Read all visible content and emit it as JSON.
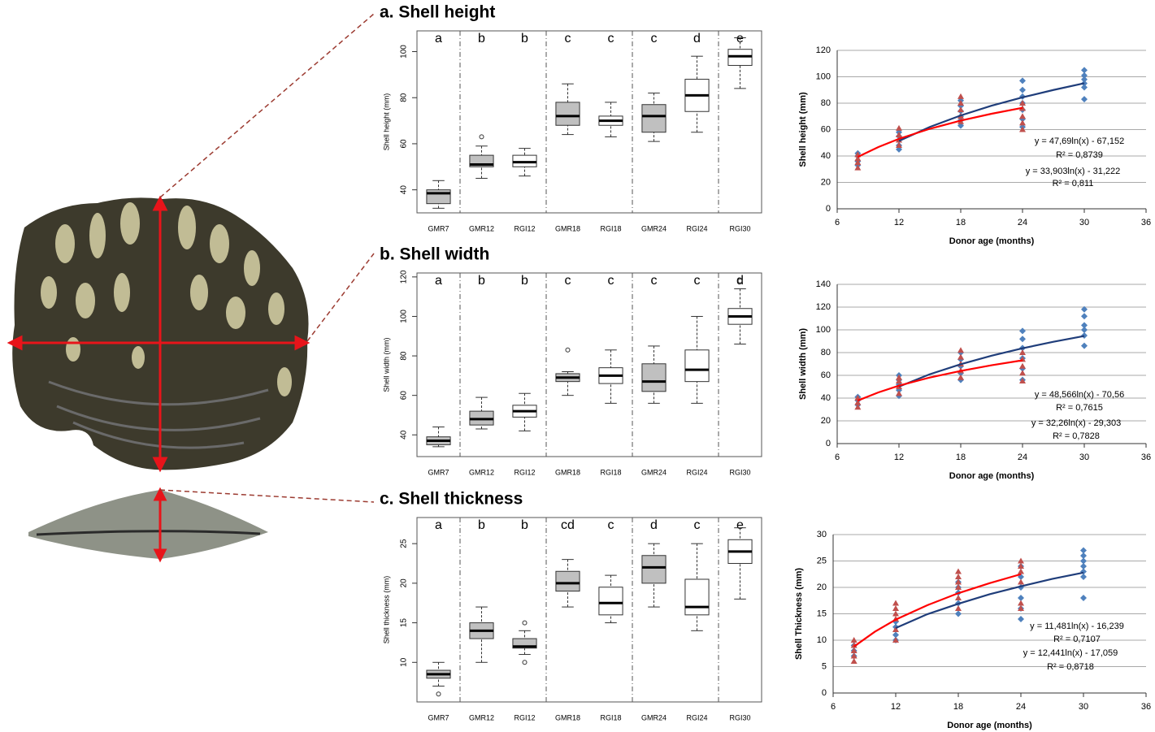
{
  "chart_data": [
    {
      "type": "box",
      "title": "a. Shell height",
      "ylabel": "Shell height (mm)",
      "categories": [
        "GMR7",
        "GMR12",
        "RGI12",
        "GMR18",
        "RGI18",
        "GMR24",
        "RGI24",
        "RGI30"
      ],
      "letters": [
        "a",
        "b",
        "b",
        "c",
        "c",
        "c",
        "d",
        "e"
      ],
      "fills": [
        "#c0c0c0",
        "#c0c0c0",
        "#ffffff",
        "#c0c0c0",
        "#ffffff",
        "#c0c0c0",
        "#ffffff",
        "#ffffff"
      ],
      "boxes": [
        {
          "min": 32,
          "q1": 34,
          "median": 38.5,
          "q3": 40,
          "max": 44,
          "outliers": []
        },
        {
          "min": 45,
          "q1": 50,
          "median": 51,
          "q3": 55,
          "max": 59,
          "outliers": [
            63
          ]
        },
        {
          "min": 46,
          "q1": 50,
          "median": 52,
          "q3": 55,
          "max": 58,
          "outliers": []
        },
        {
          "min": 64,
          "q1": 68,
          "median": 72,
          "q3": 78,
          "max": 86,
          "outliers": []
        },
        {
          "min": 63,
          "q1": 68,
          "median": 70,
          "q3": 72,
          "max": 78,
          "outliers": []
        },
        {
          "min": 61,
          "q1": 65,
          "median": 72,
          "q3": 77,
          "max": 82,
          "outliers": []
        },
        {
          "min": 65,
          "q1": 74,
          "median": 81,
          "q3": 88,
          "max": 98,
          "outliers": []
        },
        {
          "min": 84,
          "q1": 94,
          "median": 98,
          "q3": 101,
          "max": 106,
          "outliers": []
        }
      ],
      "ylim": [
        30,
        109
      ],
      "yticks": [
        40,
        60,
        80,
        100
      ]
    },
    {
      "type": "scatter",
      "xlabel": "Donor age (months)",
      "ylabel": "Shell height (mm)",
      "xlim": [
        6,
        36
      ],
      "xticks": [
        6,
        12,
        18,
        24,
        30,
        36
      ],
      "ylim": [
        0,
        120
      ],
      "yticks": [
        0,
        20,
        40,
        60,
        80,
        100,
        120
      ],
      "grid": true,
      "series": [
        {
          "color": "#4f81bd",
          "marker": "diamond",
          "x": [
            8,
            8,
            8,
            8,
            12,
            12,
            12,
            12,
            12,
            18,
            18,
            18,
            18,
            18,
            18,
            24,
            24,
            24,
            24,
            24,
            24,
            24,
            30,
            30,
            30,
            30,
            30,
            30
          ],
          "values": [
            33,
            36,
            40,
            42,
            45,
            48,
            52,
            55,
            58,
            63,
            67,
            70,
            74,
            78,
            82,
            62,
            68,
            75,
            80,
            85,
            90,
            97,
            83,
            92,
            95,
            98,
            101,
            105
          ]
        },
        {
          "color": "#c0504d",
          "marker": "triangle",
          "x": [
            8,
            8,
            8,
            8,
            12,
            12,
            12,
            12,
            18,
            18,
            18,
            18,
            18,
            24,
            24,
            24,
            24,
            24
          ],
          "values": [
            31,
            35,
            38,
            41,
            48,
            52,
            56,
            61,
            66,
            70,
            75,
            80,
            85,
            60,
            65,
            70,
            76,
            80
          ]
        }
      ],
      "fits": [
        {
          "name": "y = 47,69ln(x) - 67,152",
          "r2": "R² = 0,8739",
          "color": "#1f3d7a",
          "label_color": "#558ed5",
          "x": [
            12,
            15,
            18,
            21,
            24,
            27,
            30
          ],
          "values": [
            51.4,
            62.0,
            70.7,
            78.1,
            84.4,
            90.0,
            95.1
          ]
        },
        {
          "name": "y = 33,903ln(x) - 31,222",
          "r2": "R² = 0,811",
          "color": "#ff0000",
          "label_color": "#ff0000",
          "x": [
            8,
            10,
            12,
            15,
            18,
            21,
            24
          ],
          "values": [
            39.3,
            46.8,
            53.0,
            60.6,
            66.8,
            72.0,
            76.5
          ]
        }
      ]
    },
    {
      "type": "box",
      "title": "b. Shell width",
      "ylabel": "Shell width (mm)",
      "categories": [
        "GMR7",
        "GMR12",
        "RGI12",
        "GMR18",
        "RGI18",
        "GMR24",
        "RGI24",
        "RGI30"
      ],
      "letters": [
        "a",
        "b",
        "b",
        "c",
        "c",
        "c",
        "c",
        "d"
      ],
      "fills": [
        "#c0c0c0",
        "#c0c0c0",
        "#ffffff",
        "#c0c0c0",
        "#ffffff",
        "#c0c0c0",
        "#ffffff",
        "#ffffff"
      ],
      "boxes": [
        {
          "min": 34,
          "q1": 35,
          "median": 37,
          "q3": 39,
          "max": 44,
          "outliers": []
        },
        {
          "min": 43,
          "q1": 45,
          "median": 48,
          "q3": 52,
          "max": 59,
          "outliers": []
        },
        {
          "min": 42,
          "q1": 49,
          "median": 52,
          "q3": 55,
          "max": 61,
          "outliers": []
        },
        {
          "min": 60,
          "q1": 67,
          "median": 69,
          "q3": 71,
          "max": 72,
          "outliers": [
            83
          ]
        },
        {
          "min": 56,
          "q1": 66,
          "median": 70,
          "q3": 74,
          "max": 83,
          "outliers": []
        },
        {
          "min": 56,
          "q1": 62,
          "median": 67,
          "q3": 76,
          "max": 85,
          "outliers": []
        },
        {
          "min": 56,
          "q1": 67,
          "median": 73,
          "q3": 83,
          "max": 100,
          "outliers": []
        },
        {
          "min": 86,
          "q1": 96,
          "median": 100,
          "q3": 104,
          "max": 114,
          "outliers": [
            118
          ]
        }
      ],
      "ylim": [
        29,
        122
      ],
      "yticks": [
        40,
        60,
        80,
        100,
        120
      ]
    },
    {
      "type": "scatter",
      "xlabel": "Donor age (months)",
      "ylabel": "Shell width (mm)",
      "xlim": [
        6,
        36
      ],
      "xticks": [
        6,
        12,
        18,
        24,
        30,
        36
      ],
      "ylim": [
        0,
        140
      ],
      "yticks": [
        0,
        20,
        40,
        60,
        80,
        100,
        120,
        140
      ],
      "grid": true,
      "series": [
        {
          "color": "#4f81bd",
          "marker": "diamond",
          "x": [
            8,
            8,
            8,
            12,
            12,
            12,
            12,
            12,
            18,
            18,
            18,
            18,
            18,
            24,
            24,
            24,
            24,
            24,
            24,
            30,
            30,
            30,
            30,
            30,
            30
          ],
          "values": [
            34,
            38,
            41,
            42,
            47,
            52,
            56,
            60,
            56,
            62,
            68,
            74,
            80,
            56,
            66,
            75,
            84,
            92,
            99,
            86,
            95,
            100,
            104,
            112,
            118
          ]
        },
        {
          "color": "#c0504d",
          "marker": "triangle",
          "x": [
            8,
            8,
            8,
            12,
            12,
            12,
            12,
            18,
            18,
            18,
            18,
            18,
            24,
            24,
            24,
            24,
            24
          ],
          "values": [
            32,
            36,
            40,
            44,
            50,
            55,
            58,
            58,
            64,
            70,
            76,
            82,
            55,
            62,
            68,
            74,
            80
          ]
        }
      ],
      "fits": [
        {
          "name": "y = 48,566ln(x) - 70,56",
          "r2": "R² = 0,7615",
          "color": "#1f3d7a",
          "label_color": "#558ed5",
          "x": [
            12,
            15,
            18,
            21,
            24,
            27,
            30
          ],
          "values": [
            50.1,
            61.0,
            69.8,
            77.3,
            83.8,
            89.5,
            94.6
          ]
        },
        {
          "name": "y = 32,26ln(x) - 29,303",
          "r2": "R² = 0,7828",
          "color": "#ff0000",
          "label_color": "#ff0000",
          "x": [
            8,
            10,
            12,
            15,
            18,
            21,
            24
          ],
          "values": [
            37.8,
            45.0,
            50.9,
            58.1,
            63.9,
            68.9,
            73.2
          ]
        }
      ]
    },
    {
      "type": "box",
      "title": "c. Shell thickness",
      "ylabel": "Shell thickness (mm)",
      "categories": [
        "GMR7",
        "GMR12",
        "RGI12",
        "GMR18",
        "RGI18",
        "GMR24",
        "RGI24",
        "RGI30"
      ],
      "letters": [
        "a",
        "b",
        "b",
        "cd",
        "c",
        "d",
        "c",
        "e"
      ],
      "fills": [
        "#c0c0c0",
        "#c0c0c0",
        "#c0c0c0",
        "#c0c0c0",
        "#ffffff",
        "#c0c0c0",
        "#ffffff",
        "#ffffff"
      ],
      "boxes": [
        {
          "min": 7,
          "q1": 8,
          "median": 8.5,
          "q3": 9,
          "max": 10,
          "outliers": [
            6
          ]
        },
        {
          "min": 10,
          "q1": 13,
          "median": 14,
          "q3": 15,
          "max": 17,
          "outliers": []
        },
        {
          "min": 11,
          "q1": 11.8,
          "median": 12,
          "q3": 13,
          "max": 14,
          "outliers": [
            15,
            10
          ]
        },
        {
          "min": 17,
          "q1": 19,
          "median": 20,
          "q3": 21.5,
          "max": 23,
          "outliers": []
        },
        {
          "min": 15,
          "q1": 16,
          "median": 17.5,
          "q3": 19.5,
          "max": 21,
          "outliers": []
        },
        {
          "min": 17,
          "q1": 20,
          "median": 22,
          "q3": 23.5,
          "max": 25,
          "outliers": []
        },
        {
          "min": 14,
          "q1": 16,
          "median": 17,
          "q3": 20.5,
          "max": 25,
          "outliers": []
        },
        {
          "min": 18,
          "q1": 22.5,
          "median": 24,
          "q3": 25.5,
          "max": 27,
          "outliers": []
        }
      ],
      "ylim": [
        5,
        28.3
      ],
      "yticks": [
        10,
        15,
        20,
        25
      ]
    },
    {
      "type": "scatter",
      "xlabel": "Donor age (months)",
      "ylabel": "Shell Thickness (mm)",
      "xlim": [
        6,
        36
      ],
      "xticks": [
        6,
        12,
        18,
        24,
        30,
        36
      ],
      "ylim": [
        0,
        30
      ],
      "yticks": [
        0,
        5,
        10,
        15,
        20,
        25,
        30
      ],
      "grid": true,
      "series": [
        {
          "color": "#4f81bd",
          "marker": "diamond",
          "x": [
            8,
            8,
            8,
            12,
            12,
            12,
            12,
            18,
            18,
            18,
            18,
            18,
            24,
            24,
            24,
            24,
            24,
            24,
            30,
            30,
            30,
            30,
            30,
            30,
            30
          ],
          "values": [
            7,
            8,
            9,
            10,
            11,
            12.5,
            13.5,
            15,
            17,
            19,
            20,
            21,
            14,
            16,
            18,
            20,
            22,
            24,
            18,
            22,
            23,
            24,
            25,
            26,
            27
          ]
        },
        {
          "color": "#c0504d",
          "marker": "triangle",
          "x": [
            8,
            8,
            8,
            8,
            8,
            12,
            12,
            12,
            12,
            12,
            12,
            18,
            18,
            18,
            18,
            18,
            18,
            24,
            24,
            24,
            24,
            24,
            24
          ],
          "values": [
            6,
            7,
            8,
            9,
            10,
            10,
            12,
            14,
            15,
            16,
            17,
            16,
            18,
            20,
            21,
            22,
            23,
            16,
            17,
            21,
            23,
            24,
            25
          ]
        }
      ],
      "fits": [
        {
          "name": "y = 11,481ln(x) - 16,239",
          "r2": "R² = 0,7107",
          "color": "#1f3d7a",
          "label_color": "#558ed5",
          "x": [
            12,
            15,
            18,
            21,
            24,
            27,
            30
          ],
          "values": [
            12.3,
            14.9,
            16.9,
            18.7,
            20.2,
            21.6,
            22.8
          ]
        },
        {
          "name": "y = 12,441ln(x) - 17,059",
          "r2": "R² = 0,8718",
          "color": "#ff0000",
          "label_color": "#ff0000",
          "x": [
            8,
            10,
            12,
            15,
            18,
            21,
            24
          ],
          "values": [
            8.8,
            11.6,
            13.9,
            16.6,
            18.9,
            20.8,
            22.5
          ]
        }
      ]
    }
  ]
}
